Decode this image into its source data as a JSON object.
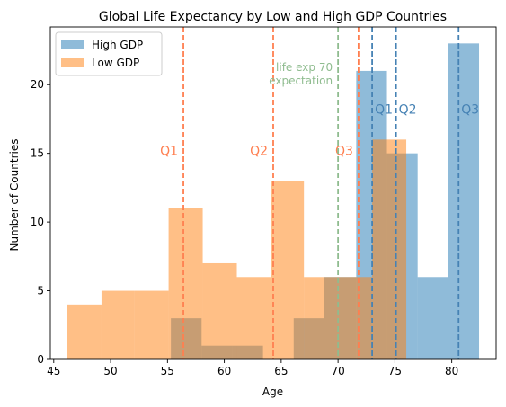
{
  "chart_data": {
    "type": "bar",
    "title": "Global Life Expectancy by Low and High GDP Countries",
    "xlabel": "Age",
    "ylabel": "Number of Countries",
    "xlim": [
      44.7,
      83.9
    ],
    "ylim": [
      0,
      24.2
    ],
    "xticks": [
      45,
      50,
      55,
      60,
      65,
      70,
      75,
      80
    ],
    "yticks": [
      0,
      5,
      10,
      15,
      20
    ],
    "legend_position": "top-left",
    "series": [
      {
        "name": "High GDP",
        "color": "#1f77b4",
        "opacity": 0.5,
        "bins": [
          {
            "x0": 55.3,
            "x1": 58.0,
            "count": 3
          },
          {
            "x0": 58.0,
            "x1": 60.7,
            "count": 1
          },
          {
            "x0": 60.7,
            "x1": 63.4,
            "count": 1
          },
          {
            "x0": 63.4,
            "x1": 66.1,
            "count": 0
          },
          {
            "x0": 66.1,
            "x1": 68.8,
            "count": 3
          },
          {
            "x0": 68.8,
            "x1": 71.6,
            "count": 6
          },
          {
            "x0": 71.6,
            "x1": 74.3,
            "count": 21
          },
          {
            "x0": 74.3,
            "x1": 77.0,
            "count": 15
          },
          {
            "x0": 77.0,
            "x1": 79.7,
            "count": 6
          },
          {
            "x0": 79.7,
            "x1": 82.4,
            "count": 23
          }
        ]
      },
      {
        "name": "Low GDP",
        "color": "#ff7f0e",
        "opacity": 0.5,
        "bins": [
          {
            "x0": 46.2,
            "x1": 49.2,
            "count": 4
          },
          {
            "x0": 49.2,
            "x1": 52.1,
            "count": 5
          },
          {
            "x0": 52.1,
            "x1": 55.1,
            "count": 5
          },
          {
            "x0": 55.1,
            "x1": 58.1,
            "count": 11
          },
          {
            "x0": 58.1,
            "x1": 61.1,
            "count": 7
          },
          {
            "x0": 61.1,
            "x1": 64.1,
            "count": 6
          },
          {
            "x0": 64.1,
            "x1": 67.0,
            "count": 13
          },
          {
            "x0": 67.0,
            "x1": 70.0,
            "count": 6
          },
          {
            "x0": 70.0,
            "x1": 73.0,
            "count": 6
          },
          {
            "x0": 73.0,
            "x1": 76.0,
            "count": 16
          }
        ]
      }
    ],
    "reference_lines": [
      {
        "label": "Q1",
        "x": 56.4,
        "color": "#ff7f50",
        "label_y": 15.2,
        "label_side": "left"
      },
      {
        "label": "Q2",
        "x": 64.3,
        "color": "#ff7f50",
        "label_y": 15.2,
        "label_side": "left"
      },
      {
        "label": "Q3",
        "x": 71.8,
        "color": "#ff7f50",
        "label_y": 15.2,
        "label_side": "left"
      },
      {
        "label": "Q1",
        "x": 73.0,
        "color": "#4682b4",
        "label_y": 18.2,
        "label_side": "right"
      },
      {
        "label": "Q2",
        "x": 75.1,
        "color": "#4682b4",
        "label_y": 18.2,
        "label_side": "right"
      },
      {
        "label": "Q3",
        "x": 80.6,
        "color": "#4682b4",
        "label_y": 18.2,
        "label_side": "right"
      },
      {
        "label": "life exp 70\nexpectation",
        "x": 70.0,
        "color": "#8fbc8f",
        "label_y": 21.0,
        "label_side": "left"
      }
    ]
  }
}
